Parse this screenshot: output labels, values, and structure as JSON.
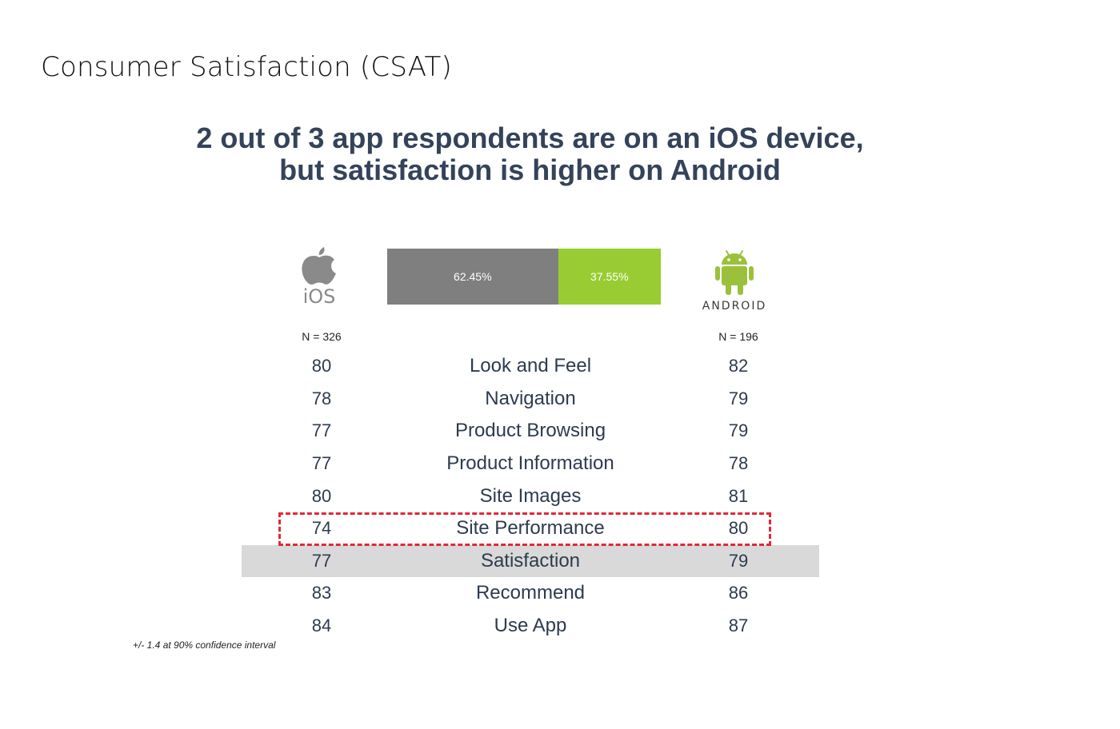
{
  "slide_title": "Consumer Satisfaction (CSAT)",
  "headline": {
    "line1": "2 out of 3 app respondents are on an iOS device,",
    "line2": "but satisfaction is higher on Android"
  },
  "ios": {
    "logo_text": "iOS",
    "n_label": "N = 326",
    "icon": "apple-icon",
    "color": "#8a8a8a"
  },
  "android": {
    "logo_text": "ANDROID",
    "n_label": "N = 196",
    "icon": "android-robot-icon",
    "color": "#9bc13c"
  },
  "share_bar": {
    "ios_percent": 62.45,
    "android_percent": 37.55,
    "ios_label": "62.45%",
    "android_label": "37.55%",
    "ios_color": "#7f7f7f",
    "android_color": "#99cc33"
  },
  "rows": [
    {
      "metric": "Look and Feel",
      "ios": "80",
      "android": "82",
      "highlight": false
    },
    {
      "metric": "Navigation",
      "ios": "78",
      "android": "79",
      "highlight": false
    },
    {
      "metric": "Product Browsing",
      "ios": "77",
      "android": "79",
      "highlight": false
    },
    {
      "metric": "Product Information",
      "ios": "77",
      "android": "78",
      "highlight": false
    },
    {
      "metric": "Site Images",
      "ios": "80",
      "android": "81",
      "highlight": false
    },
    {
      "metric": "Site Performance",
      "ios": "74",
      "android": "80",
      "highlight": false,
      "callout": true
    },
    {
      "metric": "Satisfaction",
      "ios": "77",
      "android": "79",
      "highlight": true
    },
    {
      "metric": "Recommend",
      "ios": "83",
      "android": "86",
      "highlight": false
    },
    {
      "metric": "Use App",
      "ios": "84",
      "android": "87",
      "highlight": false
    }
  ],
  "callout_color": "#e0283a",
  "highlight_color": "#d9d9d9",
  "footnote": "+/- 1.4 at 90% confidence interval"
}
